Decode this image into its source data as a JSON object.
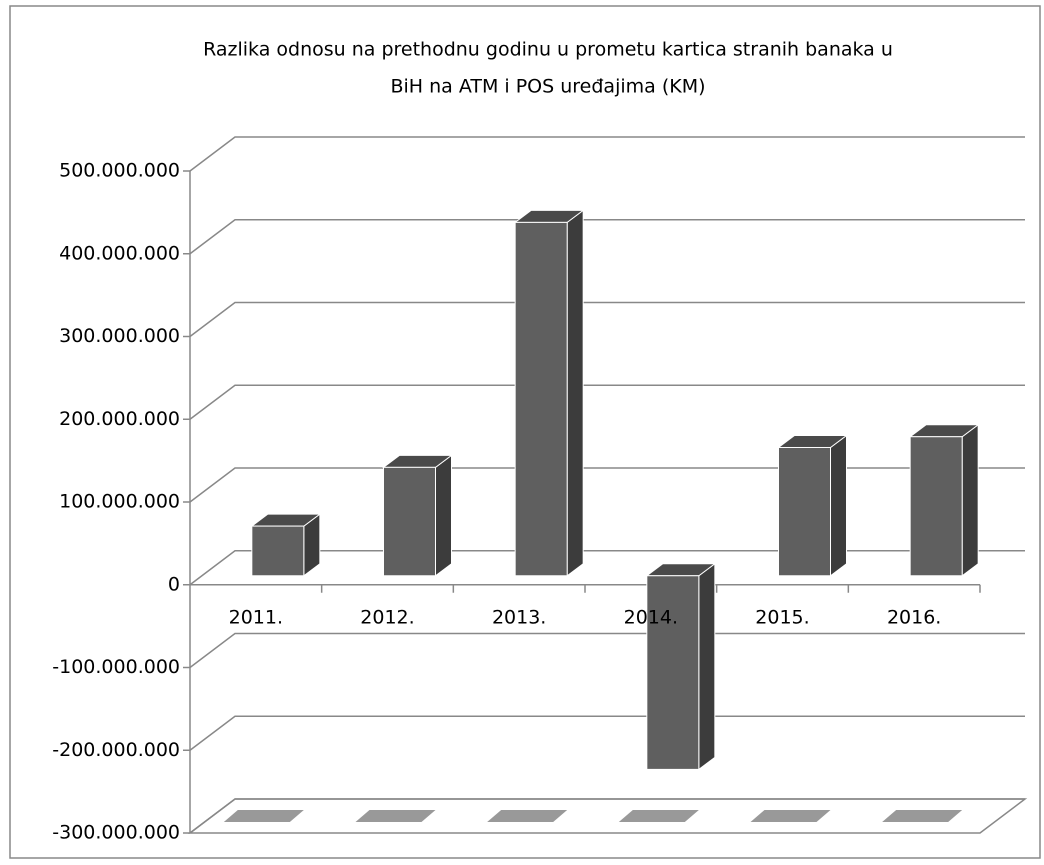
{
  "chart_data": {
    "type": "bar3d",
    "title": [
      "Razlika odnosu  na prethodnu godinu u prometu kartica stranih banaka u",
      "BiH  na ATM i POS uređajima  (KM)"
    ],
    "categories": [
      "2011.",
      "2012.",
      "2013.",
      "2014.",
      "2015.",
      "2016."
    ],
    "values": [
      60000000,
      131000000,
      427000000,
      -234000000,
      155000000,
      168000000
    ],
    "color": "#5f5f5f",
    "ylim": [
      -300000000,
      500000000
    ],
    "yticks": [
      {
        "value": -300000000,
        "label": "-300.000.000"
      },
      {
        "value": -200000000,
        "label": "-200.000.000"
      },
      {
        "value": -100000000,
        "label": "-100.000.000"
      },
      0,
      {
        "value": 100000000,
        "label": "100.000.000"
      },
      {
        "value": 200000000,
        "label": "200.000.000"
      },
      {
        "value": 300000000,
        "label": "300.000.000"
      },
      {
        "value": 400000000,
        "label": "400.000.000"
      },
      {
        "value": 500000000,
        "label": "500.000.000"
      }
    ],
    "grid": true
  }
}
